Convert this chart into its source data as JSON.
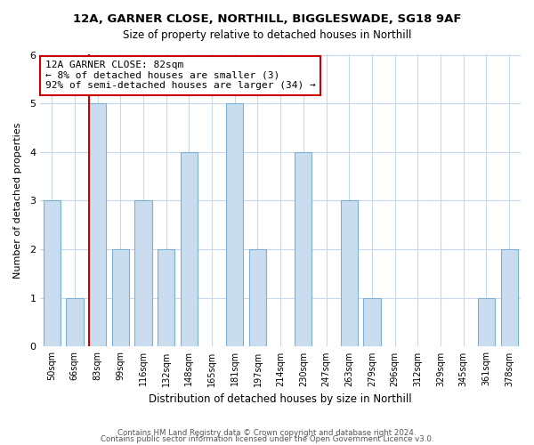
{
  "title_line1": "12A, GARNER CLOSE, NORTHILL, BIGGLESWADE, SG18 9AF",
  "title_line2": "Size of property relative to detached houses in Northill",
  "xlabel": "Distribution of detached houses by size in Northill",
  "ylabel": "Number of detached properties",
  "bin_labels": [
    "50sqm",
    "66sqm",
    "83sqm",
    "99sqm",
    "116sqm",
    "132sqm",
    "148sqm",
    "165sqm",
    "181sqm",
    "197sqm",
    "214sqm",
    "230sqm",
    "247sqm",
    "263sqm",
    "279sqm",
    "296sqm",
    "312sqm",
    "329sqm",
    "345sqm",
    "361sqm",
    "378sqm"
  ],
  "bar_heights": [
    3,
    1,
    5,
    2,
    3,
    2,
    4,
    0,
    5,
    2,
    0,
    4,
    0,
    3,
    1,
    0,
    0,
    0,
    0,
    1,
    2
  ],
  "bar_color": "#c9ddef",
  "bar_edge_color": "#7aafd6",
  "highlight_bar_index": 2,
  "highlight_edge_color": "#cc0000",
  "annotation_text": "12A GARNER CLOSE: 82sqm\n← 8% of detached houses are smaller (3)\n92% of semi-detached houses are larger (34) →",
  "annotation_box_edge_color": "#cc0000",
  "ylim": [
    0,
    6
  ],
  "yticks": [
    0,
    1,
    2,
    3,
    4,
    5,
    6
  ],
  "footer_line1": "Contains HM Land Registry data © Crown copyright and database right 2024.",
  "footer_line2": "Contains public sector information licensed under the Open Government Licence v3.0.",
  "background_color": "#ffffff",
  "grid_color": "#c8d8e8",
  "bar_width": 0.75
}
